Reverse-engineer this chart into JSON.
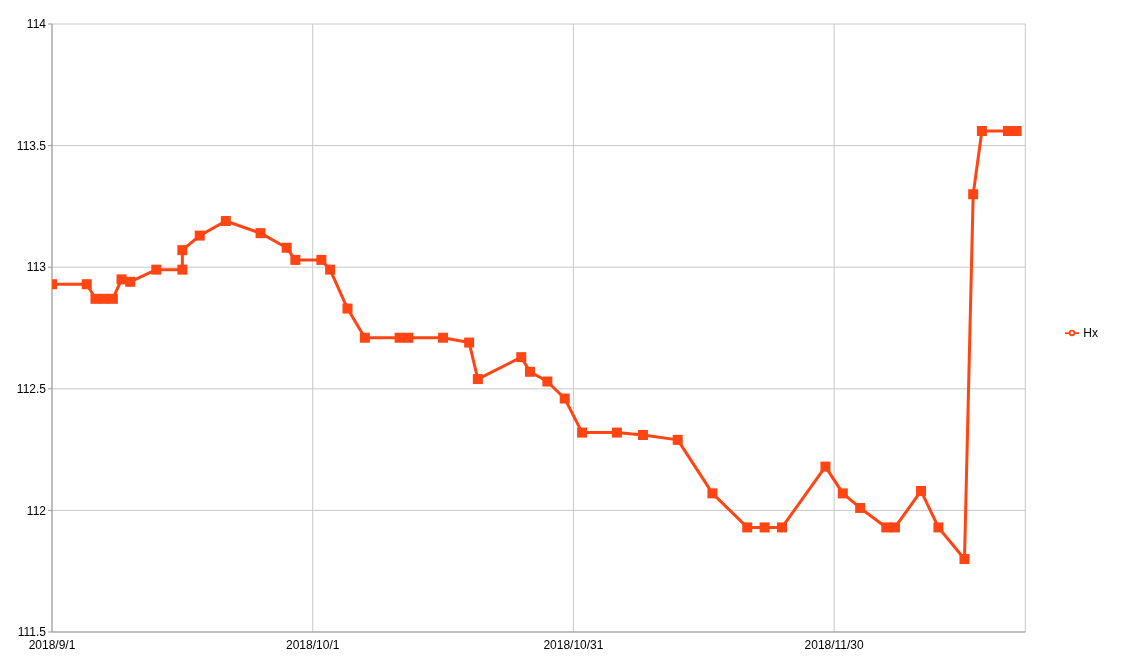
{
  "chart_data": {
    "type": "line",
    "x": [
      "2018-09-01",
      "2018-09-05",
      "2018-09-06",
      "2018-09-07",
      "2018-09-08",
      "2018-09-09",
      "2018-09-10",
      "2018-09-13",
      "2018-09-16",
      "2018-09-16",
      "2018-09-18",
      "2018-09-21",
      "2018-09-25",
      "2018-09-28",
      "2018-09-29",
      "2018-10-02",
      "2018-10-03",
      "2018-10-05",
      "2018-10-07",
      "2018-10-11",
      "2018-10-12",
      "2018-10-16",
      "2018-10-19",
      "2018-10-20",
      "2018-10-25",
      "2018-10-26",
      "2018-10-28",
      "2018-10-30",
      "2018-11-01",
      "2018-11-05",
      "2018-11-08",
      "2018-11-12",
      "2018-11-16",
      "2018-11-20",
      "2018-11-22",
      "2018-11-24",
      "2018-11-29",
      "2018-12-01",
      "2018-12-03",
      "2018-12-06",
      "2018-12-07",
      "2018-12-10",
      "2018-12-12",
      "2018-12-15",
      "2018-12-16",
      "2018-12-17",
      "2018-12-20",
      "2018-12-21"
    ],
    "series": [
      {
        "name": "Hx",
        "color": "#ff4513",
        "values": [
          112.93,
          112.93,
          112.87,
          112.87,
          112.87,
          112.95,
          112.94,
          112.99,
          112.99,
          113.07,
          113.13,
          113.19,
          113.14,
          113.08,
          113.03,
          113.03,
          112.99,
          112.83,
          112.71,
          112.71,
          112.71,
          112.71,
          112.69,
          112.54,
          112.63,
          112.57,
          112.53,
          112.46,
          112.32,
          112.32,
          112.31,
          112.29,
          112.07,
          111.93,
          111.93,
          111.93,
          112.18,
          112.07,
          112.01,
          111.93,
          111.93,
          112.08,
          111.93,
          111.8,
          113.3,
          113.56,
          113.56,
          113.56
        ]
      }
    ],
    "xlim": [
      "2018-09-01",
      "2018-12-22"
    ],
    "xticks": [
      {
        "value": "2018-09-01",
        "label": "2018/9/1"
      },
      {
        "value": "2018-10-01",
        "label": "2018/10/1"
      },
      {
        "value": "2018-10-31",
        "label": "2018/10/31"
      },
      {
        "value": "2018-11-30",
        "label": "2018/11/30"
      }
    ],
    "ylim": [
      111.5,
      114
    ],
    "yticks": [
      111.5,
      112,
      112.5,
      113,
      113.5,
      114
    ],
    "grid": true,
    "legend": "right",
    "marker": "square",
    "line_style": "solid"
  }
}
